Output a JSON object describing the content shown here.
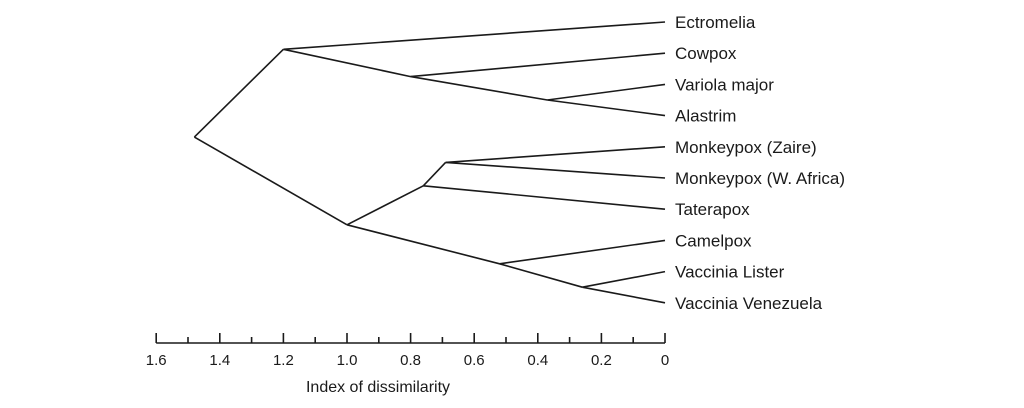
{
  "diagram": {
    "type": "dendrogram",
    "axis_label": "Index of dissimilarity",
    "axis_ticks": [
      "1.6",
      "1.4",
      "1.2",
      "1.0",
      "0.8",
      "0.6",
      "0.4",
      "0.2",
      "0"
    ],
    "axis_tick_values": [
      1.6,
      1.4,
      1.2,
      1.0,
      0.8,
      0.6,
      0.4,
      0.2,
      0.0
    ],
    "axis_range": [
      0,
      1.6
    ],
    "leaves": [
      "Ectromelia",
      "Cowpox",
      "Variola major",
      "Alastrim",
      "Monkeypox (Zaire)",
      "Monkeypox (W. Africa)",
      "Taterapox",
      "Camelpox",
      "Vaccinia Lister",
      "Vaccinia Venezuela"
    ],
    "clusters": [
      {
        "members": [
          "Variola major",
          "Alastrim"
        ],
        "height": 0.37
      },
      {
        "members": [
          "Cowpox",
          "Variola major",
          "Alastrim"
        ],
        "height": 0.8
      },
      {
        "members": [
          "Ectromelia",
          "Cowpox",
          "Variola major",
          "Alastrim"
        ],
        "height": 1.2
      },
      {
        "members": [
          "Monkeypox (Zaire)",
          "Monkeypox (W. Africa)"
        ],
        "height": 0.69
      },
      {
        "members": [
          "Monkeypox (Zaire)",
          "Monkeypox (W. Africa)",
          "Taterapox"
        ],
        "height": 0.76
      },
      {
        "members": [
          "Vaccinia Lister",
          "Vaccinia Venezuela"
        ],
        "height": 0.26
      },
      {
        "members": [
          "Camelpox",
          "Vaccinia Lister",
          "Vaccinia Venezuela"
        ],
        "height": 0.52
      },
      {
        "members": [
          "Monkeypox (Zaire)",
          "Monkeypox (W. Africa)",
          "Taterapox",
          "Camelpox",
          "Vaccinia Lister",
          "Vaccinia Venezuela"
        ],
        "height": 1.0
      },
      {
        "members": [
          "Ectromelia",
          "Cowpox",
          "Variola major",
          "Alastrim",
          "Monkeypox (Zaire)",
          "Monkeypox (W. Africa)",
          "Taterapox",
          "Camelpox",
          "Vaccinia Lister",
          "Vaccinia Venezuela"
        ],
        "height": 1.48
      }
    ]
  }
}
